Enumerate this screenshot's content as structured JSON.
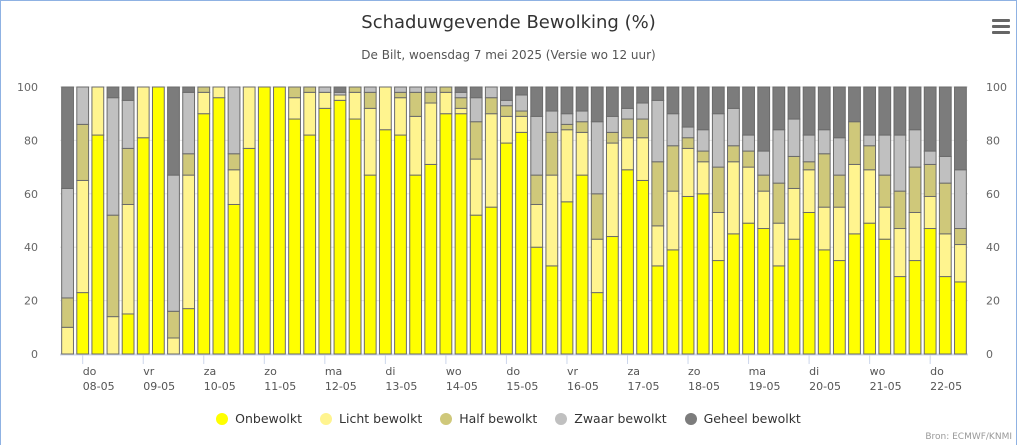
{
  "header": {
    "title": "Schaduwgevende Bewolking (%)",
    "subtitle": "De Bilt, woensdag 7 mei 2025 (Versie wo 12 uur)",
    "menu_icon": "hamburger-menu-icon"
  },
  "credits": "Bron: ECMWF/KNMI",
  "chart_data": {
    "type": "bar",
    "stacked": true,
    "title": "Schaduwgevende Bewolking (%)",
    "subtitle": "De Bilt, woensdag 7 mei 2025 (Versie wo 12 uur)",
    "xlabel": "",
    "ylabel": "",
    "ylim": [
      0,
      100
    ],
    "yticks": [
      0,
      20,
      40,
      60,
      80,
      100
    ],
    "y_axis_both_sides": true,
    "grid": true,
    "legend_position": "bottom-center",
    "bars_per_day": 4,
    "x_ticks": [
      {
        "day": "do",
        "date": "08-05"
      },
      {
        "day": "vr",
        "date": "09-05"
      },
      {
        "day": "za",
        "date": "10-05"
      },
      {
        "day": "zo",
        "date": "11-05"
      },
      {
        "day": "ma",
        "date": "12-05"
      },
      {
        "day": "di",
        "date": "13-05"
      },
      {
        "day": "wo",
        "date": "14-05"
      },
      {
        "day": "do",
        "date": "15-05"
      },
      {
        "day": "vr",
        "date": "16-05"
      },
      {
        "day": "za",
        "date": "17-05"
      },
      {
        "day": "zo",
        "date": "18-05"
      },
      {
        "day": "ma",
        "date": "19-05"
      },
      {
        "day": "di",
        "date": "20-05"
      },
      {
        "day": "wo",
        "date": "21-05"
      },
      {
        "day": "do",
        "date": "22-05"
      }
    ],
    "series": [
      {
        "name": "Onbewolkt",
        "color": "#ffff00",
        "values": [
          0,
          23,
          82,
          0,
          15,
          81,
          100,
          0,
          17,
          90,
          96,
          56,
          77,
          100,
          100,
          88,
          82,
          92,
          95,
          88,
          67,
          84,
          82,
          67,
          71,
          90,
          90,
          52,
          55,
          79,
          83,
          40,
          33,
          57,
          67,
          23,
          44,
          69,
          65,
          33,
          39,
          59,
          60,
          35,
          45,
          49,
          47,
          33,
          43,
          53,
          39,
          35,
          45,
          49,
          43,
          29,
          35,
          47,
          29,
          27
        ]
      },
      {
        "name": "Licht bewolkt",
        "color": "#fff48f",
        "values": [
          10,
          42,
          18,
          14,
          41,
          19,
          0,
          6,
          50,
          8,
          4,
          13,
          23,
          0,
          0,
          8,
          16,
          6,
          2,
          10,
          25,
          16,
          14,
          22,
          23,
          8,
          2,
          21,
          35,
          10,
          6,
          16,
          34,
          27,
          16,
          20,
          35,
          12,
          16,
          15,
          22,
          18,
          12,
          18,
          27,
          21,
          14,
          16,
          19,
          16,
          16,
          20,
          26,
          20,
          12,
          18,
          18,
          12,
          16,
          14
        ]
      },
      {
        "name": "Half bewolkt",
        "color": "#cfc87a",
        "values": [
          11,
          21,
          0,
          38,
          21,
          0,
          0,
          10,
          8,
          2,
          0,
          6,
          0,
          0,
          0,
          4,
          2,
          0,
          0,
          2,
          6,
          0,
          2,
          9,
          4,
          2,
          4,
          14,
          6,
          4,
          2,
          11,
          16,
          2,
          4,
          17,
          4,
          7,
          7,
          24,
          17,
          4,
          4,
          17,
          6,
          6,
          6,
          15,
          12,
          3,
          20,
          12,
          16,
          9,
          12,
          14,
          17,
          12,
          19,
          6
        ]
      },
      {
        "name": "Zwaar bewolkt",
        "color": "#c0c0c0",
        "values": [
          41,
          14,
          0,
          44,
          18,
          0,
          0,
          51,
          23,
          0,
          0,
          25,
          0,
          0,
          0,
          0,
          0,
          2,
          1,
          0,
          2,
          0,
          2,
          2,
          2,
          0,
          2,
          9,
          4,
          2,
          6,
          22,
          8,
          4,
          4,
          27,
          6,
          4,
          6,
          23,
          12,
          4,
          8,
          20,
          14,
          6,
          9,
          20,
          14,
          10,
          9,
          14,
          0,
          4,
          15,
          21,
          14,
          5,
          10,
          22
        ]
      },
      {
        "name": "Geheel bewolkt",
        "color": "#7c7c7c",
        "values": [
          38,
          0,
          0,
          4,
          5,
          0,
          0,
          33,
          2,
          0,
          0,
          0,
          0,
          0,
          0,
          0,
          0,
          0,
          2,
          0,
          0,
          0,
          0,
          0,
          0,
          0,
          2,
          4,
          0,
          5,
          3,
          11,
          9,
          10,
          9,
          13,
          11,
          8,
          6,
          5,
          10,
          15,
          16,
          10,
          8,
          18,
          24,
          16,
          12,
          18,
          16,
          19,
          13,
          18,
          18,
          18,
          16,
          24,
          26,
          31
        ]
      }
    ]
  }
}
